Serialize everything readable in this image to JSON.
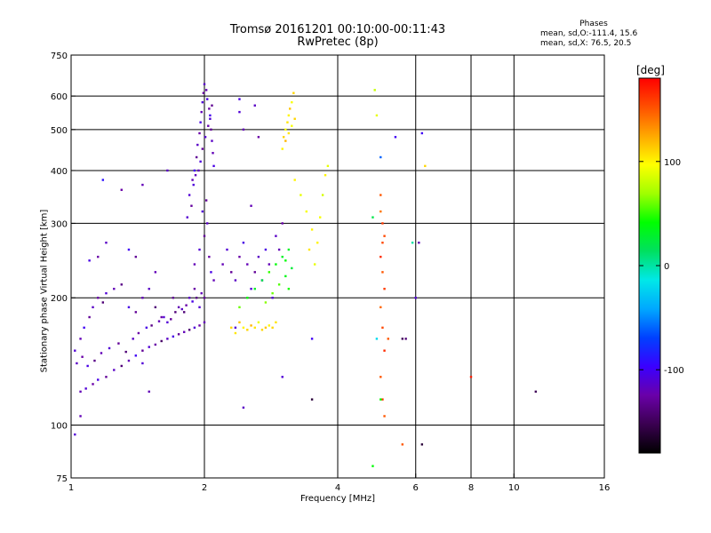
{
  "header": {
    "title_line1": "Tromsø 20161201 00:10:00-00:11:43",
    "title_line2": "RwPretec (8p)"
  },
  "stats": {
    "heading": "Phases",
    "o_line": "mean, sd,O:-111.4, 15.6",
    "x_line": "mean, sd,X:  76.5, 20.5"
  },
  "colorbar": {
    "unit": "[deg]",
    "range": [
      -180,
      180
    ],
    "ticks": [
      {
        "value": 100,
        "label": "100"
      },
      {
        "value": 0,
        "label": "0"
      },
      {
        "value": -100,
        "label": "-100"
      }
    ],
    "palette": [
      "#000000",
      "#3a0050",
      "#6a00a8",
      "#3a00ff",
      "#0040ff",
      "#00a8ff",
      "#00e8e8",
      "#00e060",
      "#00ff00",
      "#a0ff00",
      "#ffff00",
      "#ffa800",
      "#ff5000",
      "#ff0000"
    ]
  },
  "chart_data": {
    "type": "scatter",
    "title": "Tromsø 20161201 00:10:00-00:11:43",
    "subtitle": "RwPretec (8p)",
    "xlabel": "Frequency [MHz]",
    "ylabel": "Stationary phase Virtual Height [km]",
    "x_scale": "log",
    "y_scale": "log",
    "xlim": [
      1,
      16
    ],
    "ylim": [
      75,
      750
    ],
    "x_ticks": [
      {
        "value": 1,
        "label": "1"
      },
      {
        "value": 2,
        "label": "2"
      },
      {
        "value": 4,
        "label": "4"
      },
      {
        "value": 6,
        "label": "6"
      },
      {
        "value": 8,
        "label": "8"
      },
      {
        "value": 10,
        "label": "10"
      },
      {
        "value": 16,
        "label": "16"
      }
    ],
    "y_ticks": [
      {
        "value": 75,
        "label": "75"
      },
      {
        "value": 100,
        "label": "100"
      },
      {
        "value": 200,
        "label": "200"
      },
      {
        "value": 300,
        "label": "300"
      },
      {
        "value": 400,
        "label": "400"
      },
      {
        "value": 500,
        "label": "500"
      },
      {
        "value": 600,
        "label": "600"
      },
      {
        "value": 750,
        "label": "750"
      }
    ],
    "grid_x": [
      2,
      4,
      6,
      8,
      10
    ],
    "grid_y": [
      100,
      200,
      300,
      400,
      500,
      600
    ],
    "color_encoding": "phase [deg]",
    "points": [
      [
        1.05,
        120,
        -120
      ],
      [
        1.08,
        122,
        -110
      ],
      [
        1.12,
        125,
        -125
      ],
      [
        1.15,
        128,
        -105
      ],
      [
        1.2,
        130,
        -130
      ],
      [
        1.25,
        135,
        -115
      ],
      [
        1.3,
        138,
        -140
      ],
      [
        1.35,
        142,
        -120
      ],
      [
        1.4,
        146,
        -100
      ],
      [
        1.45,
        150,
        -130
      ],
      [
        1.5,
        153,
        -110
      ],
      [
        1.55,
        155,
        -125
      ],
      [
        1.6,
        158,
        -145
      ],
      [
        1.65,
        160,
        -115
      ],
      [
        1.7,
        162,
        -105
      ],
      [
        1.75,
        164,
        -130
      ],
      [
        1.8,
        166,
        -120
      ],
      [
        1.85,
        168,
        -140
      ],
      [
        1.9,
        170,
        -110
      ],
      [
        1.95,
        172,
        -125
      ],
      [
        2.0,
        175,
        -120
      ],
      [
        1.02,
        150,
        -110
      ],
      [
        1.05,
        160,
        -120
      ],
      [
        1.07,
        170,
        -100
      ],
      [
        1.1,
        180,
        -130
      ],
      [
        1.12,
        190,
        -115
      ],
      [
        1.15,
        200,
        -125
      ],
      [
        1.18,
        195,
        -140
      ],
      [
        1.2,
        205,
        -110
      ],
      [
        1.25,
        210,
        -120
      ],
      [
        1.3,
        215,
        -135
      ],
      [
        1.35,
        190,
        -105
      ],
      [
        1.4,
        185,
        -130
      ],
      [
        1.45,
        200,
        -120
      ],
      [
        1.5,
        210,
        -115
      ],
      [
        1.55,
        190,
        -140
      ],
      [
        1.6,
        180,
        -125
      ],
      [
        1.65,
        175,
        -110
      ],
      [
        1.7,
        200,
        -130
      ],
      [
        1.75,
        190,
        -120
      ],
      [
        1.8,
        185,
        -140
      ],
      [
        1.85,
        200,
        -115
      ],
      [
        1.9,
        210,
        -125
      ],
      [
        1.95,
        190,
        -110
      ],
      [
        2.0,
        200,
        -130
      ],
      [
        1.03,
        140,
        -115
      ],
      [
        1.06,
        145,
        -125
      ],
      [
        1.09,
        138,
        -105
      ],
      [
        1.13,
        142,
        -135
      ],
      [
        1.17,
        148,
        -120
      ],
      [
        1.22,
        152,
        -110
      ],
      [
        1.28,
        156,
        -130
      ],
      [
        1.33,
        149,
        -140
      ],
      [
        1.38,
        160,
        -115
      ],
      [
        1.42,
        165,
        -125
      ],
      [
        1.48,
        170,
        -105
      ],
      [
        1.52,
        172,
        -135
      ],
      [
        1.58,
        176,
        -120
      ],
      [
        1.62,
        180,
        -110
      ],
      [
        1.68,
        178,
        -130
      ],
      [
        1.72,
        185,
        -140
      ],
      [
        1.78,
        188,
        -115
      ],
      [
        1.82,
        192,
        -125
      ],
      [
        1.88,
        196,
        -105
      ],
      [
        1.92,
        200,
        -135
      ],
      [
        1.97,
        205,
        -120
      ],
      [
        1.85,
        350,
        -110
      ],
      [
        1.88,
        380,
        -120
      ],
      [
        1.9,
        400,
        -100
      ],
      [
        1.92,
        430,
        -130
      ],
      [
        1.93,
        460,
        -115
      ],
      [
        1.95,
        490,
        -125
      ],
      [
        1.96,
        520,
        -105
      ],
      [
        1.97,
        550,
        -120
      ],
      [
        1.98,
        580,
        -110
      ],
      [
        1.99,
        610,
        -130
      ],
      [
        2.0,
        640,
        -115
      ],
      [
        2.02,
        620,
        -120
      ],
      [
        2.03,
        590,
        -105
      ],
      [
        2.05,
        560,
        -125
      ],
      [
        2.06,
        530,
        -110
      ],
      [
        2.07,
        500,
        -130
      ],
      [
        2.08,
        470,
        -115
      ],
      [
        2.09,
        440,
        -120
      ],
      [
        2.1,
        410,
        -105
      ],
      [
        1.94,
        400,
        -118
      ],
      [
        1.96,
        420,
        -108
      ],
      [
        1.98,
        450,
        -128
      ],
      [
        2.01,
        480,
        -112
      ],
      [
        2.04,
        510,
        -122
      ],
      [
        2.06,
        540,
        -102
      ],
      [
        2.08,
        570,
        -132
      ],
      [
        1.91,
        390,
        -118
      ],
      [
        1.89,
        370,
        -108
      ],
      [
        1.87,
        330,
        -128
      ],
      [
        1.83,
        310,
        -112
      ],
      [
        1.9,
        240,
        -120
      ],
      [
        1.95,
        260,
        -110
      ],
      [
        2.0,
        280,
        -130
      ],
      [
        2.03,
        300,
        -115
      ],
      [
        2.05,
        250,
        -125
      ],
      [
        2.07,
        230,
        -105
      ],
      [
        2.1,
        220,
        -120
      ],
      [
        1.98,
        320,
        -110
      ],
      [
        2.02,
        340,
        -130
      ],
      [
        1.5,
        120,
        -120
      ],
      [
        1.45,
        140,
        -110
      ],
      [
        1.35,
        260,
        -100
      ],
      [
        1.4,
        250,
        -130
      ],
      [
        1.2,
        270,
        -115
      ],
      [
        1.15,
        250,
        -125
      ],
      [
        1.1,
        245,
        -105
      ],
      [
        1.3,
        360,
        -125
      ],
      [
        1.65,
        400,
        -115
      ],
      [
        1.55,
        230,
        -120
      ],
      [
        2.2,
        240,
        -120
      ],
      [
        2.25,
        260,
        -110
      ],
      [
        2.3,
        230,
        -130
      ],
      [
        2.35,
        220,
        -115
      ],
      [
        2.4,
        250,
        -125
      ],
      [
        2.45,
        270,
        -105
      ],
      [
        2.5,
        240,
        -120
      ],
      [
        2.55,
        210,
        -110
      ],
      [
        2.6,
        230,
        -130
      ],
      [
        2.65,
        250,
        -115
      ],
      [
        2.7,
        220,
        -125
      ],
      [
        2.75,
        260,
        -105
      ],
      [
        2.8,
        240,
        -120
      ],
      [
        2.85,
        200,
        -110
      ],
      [
        2.9,
        280,
        -115
      ],
      [
        2.95,
        260,
        -120
      ],
      [
        3.0,
        300,
        -125
      ],
      [
        2.4,
        550,
        -110
      ],
      [
        2.45,
        500,
        -120
      ],
      [
        2.6,
        570,
        -115
      ],
      [
        2.65,
        480,
        -125
      ],
      [
        2.4,
        590,
        -105
      ],
      [
        2.55,
        330,
        -120
      ],
      [
        2.45,
        110,
        -115
      ],
      [
        2.35,
        170,
        -110
      ],
      [
        2.3,
        170,
        110
      ],
      [
        2.35,
        165,
        105
      ],
      [
        2.4,
        175,
        115
      ],
      [
        2.45,
        170,
        100
      ],
      [
        2.5,
        168,
        110
      ],
      [
        2.55,
        172,
        120
      ],
      [
        2.6,
        170,
        105
      ],
      [
        2.65,
        175,
        90
      ],
      [
        2.7,
        168,
        110
      ],
      [
        2.75,
        170,
        115
      ],
      [
        2.8,
        172,
        100
      ],
      [
        2.85,
        170,
        110
      ],
      [
        2.9,
        175,
        105
      ],
      [
        2.4,
        190,
        60
      ],
      [
        2.5,
        200,
        40
      ],
      [
        2.6,
        210,
        30
      ],
      [
        2.7,
        220,
        20
      ],
      [
        2.8,
        230,
        50
      ],
      [
        2.9,
        240,
        40
      ],
      [
        3.0,
        250,
        30
      ],
      [
        3.05,
        225,
        35
      ],
      [
        3.1,
        210,
        45
      ],
      [
        3.15,
        235,
        25
      ],
      [
        2.95,
        215,
        55
      ],
      [
        2.85,
        205,
        60
      ],
      [
        2.75,
        195,
        65
      ],
      [
        3.1,
        260,
        30
      ],
      [
        3.05,
        245,
        40
      ],
      [
        3.0,
        450,
        100
      ],
      [
        3.02,
        480,
        110
      ],
      [
        3.05,
        500,
        95
      ],
      [
        3.08,
        520,
        105
      ],
      [
        3.1,
        540,
        100
      ],
      [
        3.12,
        560,
        115
      ],
      [
        3.15,
        580,
        95
      ],
      [
        3.18,
        610,
        110
      ],
      [
        3.05,
        470,
        120
      ],
      [
        3.1,
        490,
        105
      ],
      [
        3.15,
        510,
        95
      ],
      [
        3.2,
        530,
        110
      ],
      [
        3.2,
        380,
        100
      ],
      [
        3.3,
        350,
        90
      ],
      [
        3.4,
        320,
        95
      ],
      [
        3.5,
        290,
        100
      ],
      [
        3.45,
        260,
        105
      ],
      [
        3.55,
        240,
        90
      ],
      [
        3.6,
        270,
        100
      ],
      [
        3.65,
        310,
        95
      ],
      [
        3.7,
        350,
        85
      ],
      [
        3.75,
        390,
        100
      ],
      [
        3.8,
        410,
        90
      ],
      [
        5.0,
        350,
        150
      ],
      [
        5.05,
        300,
        160
      ],
      [
        5.1,
        280,
        155
      ],
      [
        5.0,
        250,
        165
      ],
      [
        5.05,
        230,
        150
      ],
      [
        5.1,
        210,
        160
      ],
      [
        5.0,
        190,
        145
      ],
      [
        5.05,
        170,
        155
      ],
      [
        5.1,
        150,
        165
      ],
      [
        5.0,
        130,
        150
      ],
      [
        5.05,
        115,
        160
      ],
      [
        5.1,
        105,
        150
      ],
      [
        5.0,
        320,
        140
      ],
      [
        5.05,
        270,
        155
      ],
      [
        4.8,
        310,
        20
      ],
      [
        4.9,
        160,
        -20
      ],
      [
        4.85,
        620,
        80
      ],
      [
        4.9,
        540,
        90
      ],
      [
        5.0,
        430,
        -60
      ],
      [
        5.2,
        160,
        150
      ],
      [
        5.4,
        480,
        -100
      ],
      [
        5.6,
        160,
        -150
      ],
      [
        5.7,
        160,
        -140
      ],
      [
        6.0,
        200,
        -110
      ],
      [
        6.1,
        270,
        -120
      ],
      [
        6.2,
        490,
        -100
      ],
      [
        6.3,
        410,
        110
      ],
      [
        6.2,
        90,
        -160
      ],
      [
        5.9,
        270,
        0
      ],
      [
        5.6,
        90,
        150
      ],
      [
        8.0,
        130,
        170
      ],
      [
        11.2,
        120,
        -150
      ],
      [
        4.8,
        80,
        40
      ],
      [
        5.0,
        115,
        40
      ],
      [
        3.5,
        160,
        -100
      ],
      [
        3.0,
        130,
        -110
      ],
      [
        3.5,
        115,
        -160
      ],
      [
        1.02,
        95,
        -110
      ],
      [
        1.05,
        105,
        -120
      ],
      [
        1.18,
        380,
        -90
      ],
      [
        1.45,
        370,
        -120
      ]
    ]
  }
}
